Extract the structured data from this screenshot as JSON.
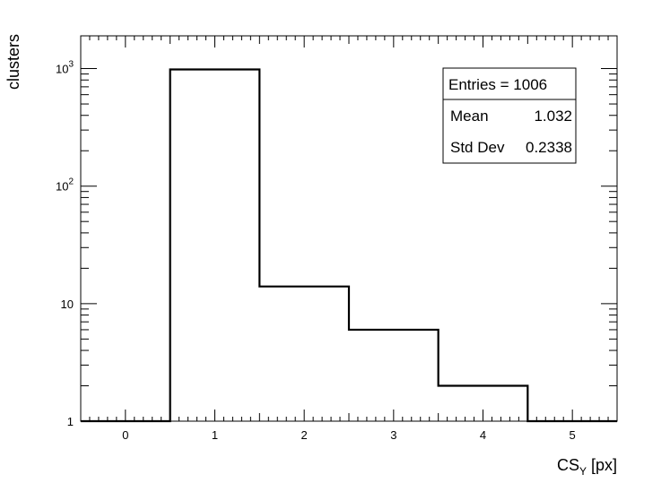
{
  "chart_data": {
    "type": "bar",
    "histogram": true,
    "xlabel_main": "CS",
    "xlabel_sub": "Y",
    "xlabel_unit": " [px]",
    "ylabel": "clusters",
    "xlim": [
      -0.5,
      5.5
    ],
    "ylim": [
      1,
      1900
    ],
    "yscale": "log",
    "x_ticks": [
      {
        "value": 0,
        "label": "0"
      },
      {
        "value": 1,
        "label": "1"
      },
      {
        "value": 2,
        "label": "2"
      },
      {
        "value": 3,
        "label": "3"
      },
      {
        "value": 4,
        "label": "4"
      },
      {
        "value": 5,
        "label": "5"
      }
    ],
    "y_ticks": [
      {
        "value": 1,
        "label": "1",
        "sup": ""
      },
      {
        "value": 10,
        "label": "10",
        "sup": ""
      },
      {
        "value": 100,
        "label": "10",
        "sup": "2"
      },
      {
        "value": 1000,
        "label": "10",
        "sup": "3"
      }
    ],
    "bins": [
      {
        "low": -0.5,
        "high": 0.5,
        "value": 0
      },
      {
        "low": 0.5,
        "high": 1.5,
        "value": 984
      },
      {
        "low": 1.5,
        "high": 2.5,
        "value": 14
      },
      {
        "low": 2.5,
        "high": 3.5,
        "value": 6
      },
      {
        "low": 3.5,
        "high": 4.5,
        "value": 2
      },
      {
        "low": 4.5,
        "high": 5.5,
        "value": 0
      }
    ],
    "legend_position": "top-right",
    "stats": {
      "entries_label": "Entries = 1006",
      "rows": [
        {
          "name": "Mean",
          "value": "1.032"
        },
        {
          "name": "Std Dev",
          "value": "0.2338"
        }
      ]
    }
  }
}
